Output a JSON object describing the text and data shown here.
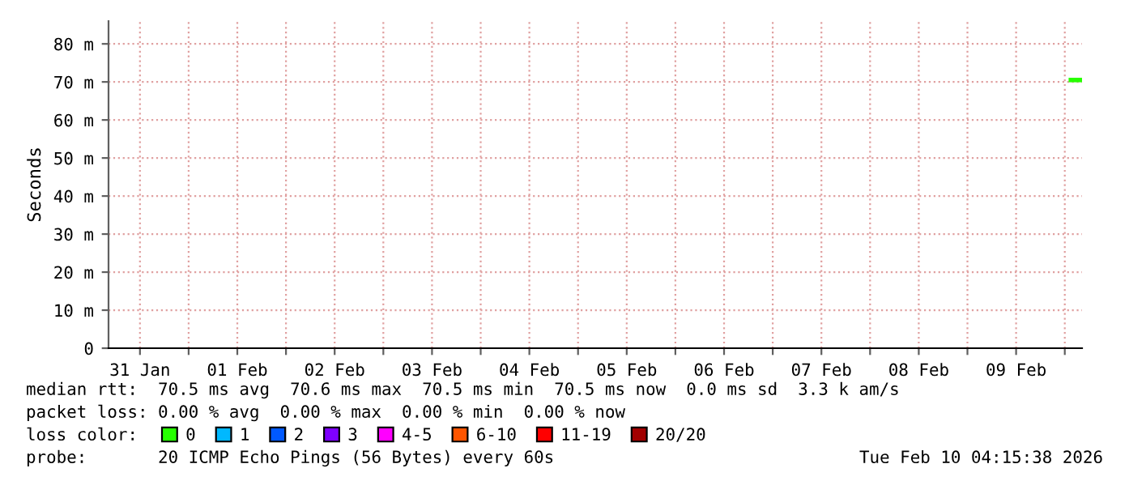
{
  "chart_data": {
    "type": "line",
    "ylabel": "Seconds",
    "x": [
      "2026-02-10T01:30",
      "2026-02-10T04:10"
    ],
    "series": [
      {
        "name": "0",
        "color": "#26ff00",
        "values": [
          70.5,
          70.5
        ]
      },
      {
        "name": "1",
        "color": "#00b8ff",
        "values": [
          null,
          null
        ]
      },
      {
        "name": "2",
        "color": "#0059ff",
        "values": [
          null,
          null
        ]
      },
      {
        "name": "3",
        "color": "#7e00ff",
        "values": [
          null,
          null
        ]
      },
      {
        "name": "4-5",
        "color": "#ff00ff",
        "values": [
          null,
          null
        ]
      },
      {
        "name": "6-10",
        "color": "#ff5500",
        "values": [
          null,
          null
        ]
      },
      {
        "name": "11-19",
        "color": "#ff0000",
        "values": [
          null,
          null
        ]
      },
      {
        "name": "20/20",
        "color": "#a10000",
        "values": [
          null,
          null
        ]
      }
    ],
    "xlim": [
      "2026-01-31T04:15",
      "2026-02-10T04:15"
    ],
    "xticks": [
      {
        "value": "2026-01-31T12:00",
        "label": "31 Jan"
      },
      {
        "value": "2026-02-01T00:00",
        "label": null
      },
      {
        "value": "2026-02-01T12:00",
        "label": "01 Feb"
      },
      {
        "value": "2026-02-02T00:00",
        "label": null
      },
      {
        "value": "2026-02-02T12:00",
        "label": "02 Feb"
      },
      {
        "value": "2026-02-03T00:00",
        "label": null
      },
      {
        "value": "2026-02-03T12:00",
        "label": "03 Feb"
      },
      {
        "value": "2026-02-04T00:00",
        "label": null
      },
      {
        "value": "2026-02-04T12:00",
        "label": "04 Feb"
      },
      {
        "value": "2026-02-05T00:00",
        "label": null
      },
      {
        "value": "2026-02-05T12:00",
        "label": "05 Feb"
      },
      {
        "value": "2026-02-06T00:00",
        "label": null
      },
      {
        "value": "2026-02-06T12:00",
        "label": "06 Feb"
      },
      {
        "value": "2026-02-07T00:00",
        "label": null
      },
      {
        "value": "2026-02-07T12:00",
        "label": "07 Feb"
      },
      {
        "value": "2026-02-08T00:00",
        "label": null
      },
      {
        "value": "2026-02-08T12:00",
        "label": "08 Feb"
      },
      {
        "value": "2026-02-09T00:00",
        "label": null
      },
      {
        "value": "2026-02-09T12:00",
        "label": "09 Feb"
      },
      {
        "value": "2026-02-10T00:00",
        "label": null
      }
    ],
    "ylim": [
      0,
      86
    ],
    "yticks": [
      0,
      {
        "value": 10,
        "label": "10 m"
      },
      {
        "value": 20,
        "label": "20 m"
      },
      {
        "value": 30,
        "label": "30 m"
      },
      {
        "value": 40,
        "label": "40 m"
      },
      {
        "value": 50,
        "label": "50 m"
      },
      {
        "value": 60,
        "label": "60 m"
      },
      {
        "value": 70,
        "label": "70 m"
      },
      {
        "value": 80,
        "label": "80 m"
      }
    ],
    "grid": true,
    "legend": "bottom",
    "marker": "none",
    "line_style": "solid",
    "annotations": [
      "median rtt:  70.5 ms avg  70.6 ms max  70.5 ms min  70.5 ms now  0.0 ms sd  3.3 k am/s",
      "packet loss: 0.00 % avg  0.00 % max  0.00 % min  0.00 % now",
      "loss color:",
      "probe:       20 ICMP Echo Pings (56 Bytes) every 60s",
      "Tue Feb 10 04:15:38 2026"
    ]
  }
}
